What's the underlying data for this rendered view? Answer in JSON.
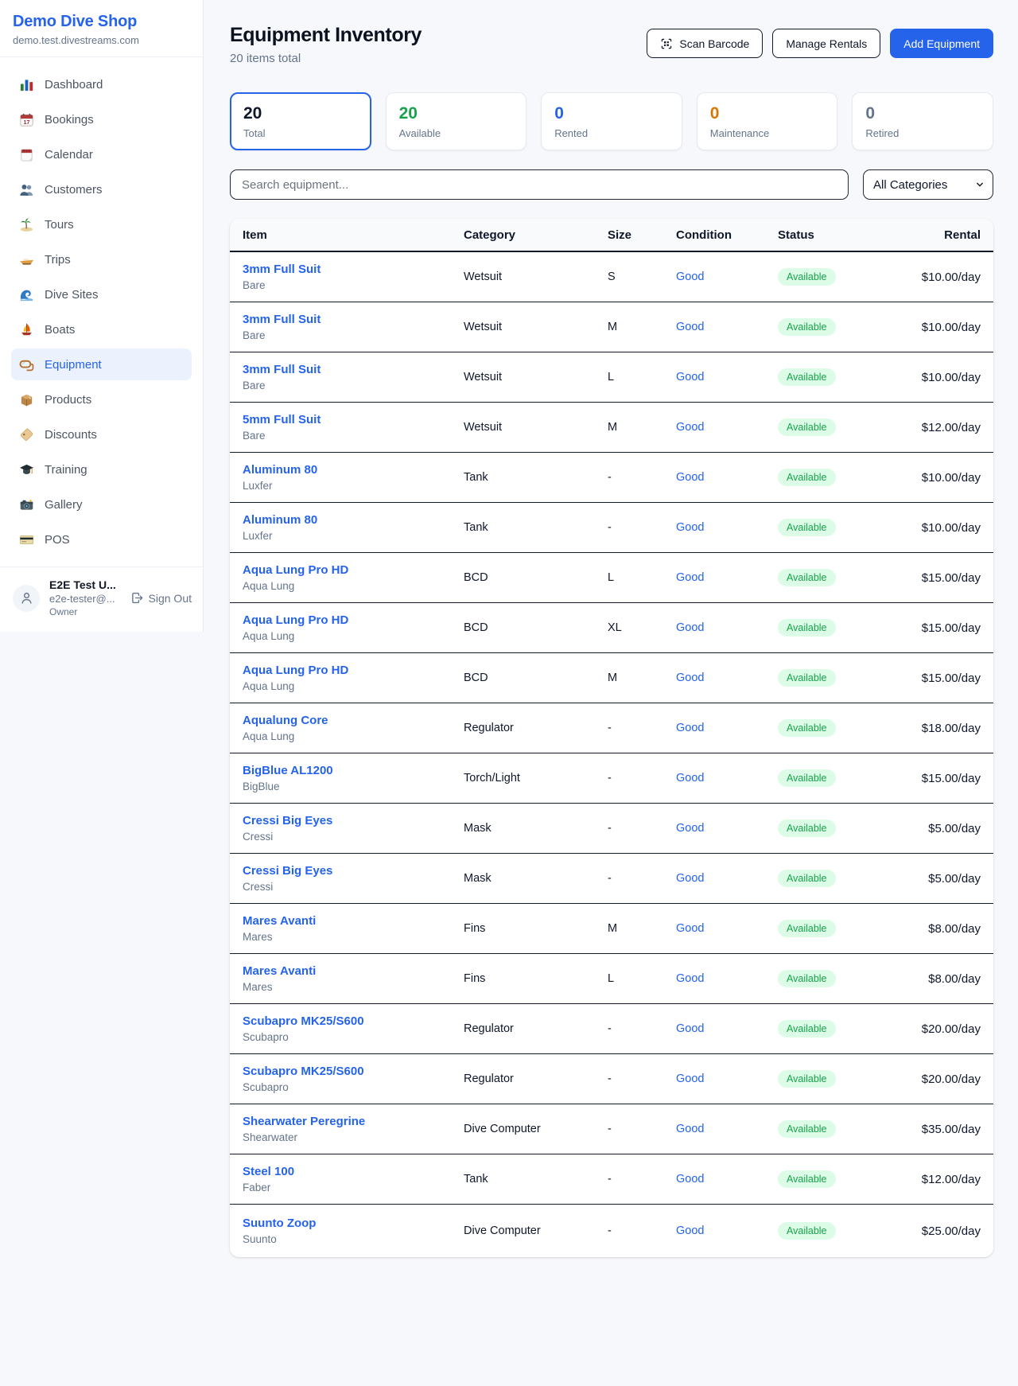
{
  "brand": {
    "name": "Demo Dive Shop",
    "domain": "demo.test.divestreams.com"
  },
  "sidebar": {
    "items": [
      {
        "id": "dashboard",
        "label": "Dashboard",
        "icon": "bar-chart-icon",
        "active": false
      },
      {
        "id": "bookings",
        "label": "Bookings",
        "icon": "bookings-calendar-icon",
        "active": false
      },
      {
        "id": "calendar",
        "label": "Calendar",
        "icon": "calendar-icon",
        "active": false
      },
      {
        "id": "customers",
        "label": "Customers",
        "icon": "customers-icon",
        "active": false
      },
      {
        "id": "tours",
        "label": "Tours",
        "icon": "palm-island-icon",
        "active": false
      },
      {
        "id": "trips",
        "label": "Trips",
        "icon": "speedboat-icon",
        "active": false
      },
      {
        "id": "dive-sites",
        "label": "Dive Sites",
        "icon": "wave-icon",
        "active": false
      },
      {
        "id": "boats",
        "label": "Boats",
        "icon": "sailboat-icon",
        "active": false
      },
      {
        "id": "equipment",
        "label": "Equipment",
        "icon": "dive-mask-icon",
        "active": true
      },
      {
        "id": "products",
        "label": "Products",
        "icon": "package-icon",
        "active": false
      },
      {
        "id": "discounts",
        "label": "Discounts",
        "icon": "price-tag-icon",
        "active": false
      },
      {
        "id": "training",
        "label": "Training",
        "icon": "graduation-cap-icon",
        "active": false
      },
      {
        "id": "gallery",
        "label": "Gallery",
        "icon": "camera-icon",
        "active": false
      },
      {
        "id": "pos",
        "label": "POS",
        "icon": "credit-card-icon",
        "active": false
      }
    ]
  },
  "user": {
    "name": "E2E Test U...",
    "email": "e2e-tester@...",
    "role": "Owner",
    "sign_out_label": "Sign Out"
  },
  "header": {
    "title": "Equipment Inventory",
    "subtitle": "20 items total",
    "scan_barcode_label": "Scan Barcode",
    "manage_rentals_label": "Manage Rentals",
    "add_equipment_label": "Add Equipment"
  },
  "stats": [
    {
      "value": "20",
      "label": "Total",
      "value_color": "#0f172a",
      "selected": true
    },
    {
      "value": "20",
      "label": "Available",
      "value_color": "#16a34a",
      "selected": false
    },
    {
      "value": "0",
      "label": "Rented",
      "value_color": "#2563eb",
      "selected": false
    },
    {
      "value": "0",
      "label": "Maintenance",
      "value_color": "#d97706",
      "selected": false
    },
    {
      "value": "0",
      "label": "Retired",
      "value_color": "#64748b",
      "selected": false
    }
  ],
  "search": {
    "placeholder": "Search equipment...",
    "category_filter_value": "All Categories"
  },
  "table": {
    "columns": {
      "item": "Item",
      "category": "Category",
      "size": "Size",
      "condition": "Condition",
      "status": "Status",
      "rental": "Rental"
    },
    "rows": [
      {
        "name": "3mm Full Suit",
        "brand": "Bare",
        "category": "Wetsuit",
        "size": "S",
        "condition": "Good",
        "status": "Available",
        "rental": "$10.00/day"
      },
      {
        "name": "3mm Full Suit",
        "brand": "Bare",
        "category": "Wetsuit",
        "size": "M",
        "condition": "Good",
        "status": "Available",
        "rental": "$10.00/day"
      },
      {
        "name": "3mm Full Suit",
        "brand": "Bare",
        "category": "Wetsuit",
        "size": "L",
        "condition": "Good",
        "status": "Available",
        "rental": "$10.00/day"
      },
      {
        "name": "5mm Full Suit",
        "brand": "Bare",
        "category": "Wetsuit",
        "size": "M",
        "condition": "Good",
        "status": "Available",
        "rental": "$12.00/day"
      },
      {
        "name": "Aluminum 80",
        "brand": "Luxfer",
        "category": "Tank",
        "size": "-",
        "condition": "Good",
        "status": "Available",
        "rental": "$10.00/day"
      },
      {
        "name": "Aluminum 80",
        "brand": "Luxfer",
        "category": "Tank",
        "size": "-",
        "condition": "Good",
        "status": "Available",
        "rental": "$10.00/day"
      },
      {
        "name": "Aqua Lung Pro HD",
        "brand": "Aqua Lung",
        "category": "BCD",
        "size": "L",
        "condition": "Good",
        "status": "Available",
        "rental": "$15.00/day"
      },
      {
        "name": "Aqua Lung Pro HD",
        "brand": "Aqua Lung",
        "category": "BCD",
        "size": "XL",
        "condition": "Good",
        "status": "Available",
        "rental": "$15.00/day"
      },
      {
        "name": "Aqua Lung Pro HD",
        "brand": "Aqua Lung",
        "category": "BCD",
        "size": "M",
        "condition": "Good",
        "status": "Available",
        "rental": "$15.00/day"
      },
      {
        "name": "Aqualung Core",
        "brand": "Aqua Lung",
        "category": "Regulator",
        "size": "-",
        "condition": "Good",
        "status": "Available",
        "rental": "$18.00/day"
      },
      {
        "name": "BigBlue AL1200",
        "brand": "BigBlue",
        "category": "Torch/Light",
        "size": "-",
        "condition": "Good",
        "status": "Available",
        "rental": "$15.00/day"
      },
      {
        "name": "Cressi Big Eyes",
        "brand": "Cressi",
        "category": "Mask",
        "size": "-",
        "condition": "Good",
        "status": "Available",
        "rental": "$5.00/day"
      },
      {
        "name": "Cressi Big Eyes",
        "brand": "Cressi",
        "category": "Mask",
        "size": "-",
        "condition": "Good",
        "status": "Available",
        "rental": "$5.00/day"
      },
      {
        "name": "Mares Avanti",
        "brand": "Mares",
        "category": "Fins",
        "size": "M",
        "condition": "Good",
        "status": "Available",
        "rental": "$8.00/day"
      },
      {
        "name": "Mares Avanti",
        "brand": "Mares",
        "category": "Fins",
        "size": "L",
        "condition": "Good",
        "status": "Available",
        "rental": "$8.00/day"
      },
      {
        "name": "Scubapro MK25/S600",
        "brand": "Scubapro",
        "category": "Regulator",
        "size": "-",
        "condition": "Good",
        "status": "Available",
        "rental": "$20.00/day"
      },
      {
        "name": "Scubapro MK25/S600",
        "brand": "Scubapro",
        "category": "Regulator",
        "size": "-",
        "condition": "Good",
        "status": "Available",
        "rental": "$20.00/day"
      },
      {
        "name": "Shearwater Peregrine",
        "brand": "Shearwater",
        "category": "Dive Computer",
        "size": "-",
        "condition": "Good",
        "status": "Available",
        "rental": "$35.00/day"
      },
      {
        "name": "Steel 100",
        "brand": "Faber",
        "category": "Tank",
        "size": "-",
        "condition": "Good",
        "status": "Available",
        "rental": "$12.00/day"
      },
      {
        "name": "Suunto Zoop",
        "brand": "Suunto",
        "category": "Dive Computer",
        "size": "-",
        "condition": "Good",
        "status": "Available",
        "rental": "$25.00/day"
      }
    ]
  },
  "colors": {
    "accent": "#2563eb",
    "condition_text": "#2563eb",
    "status_available_text": "#16a34a",
    "status_available_bg": "#dcfce7"
  }
}
